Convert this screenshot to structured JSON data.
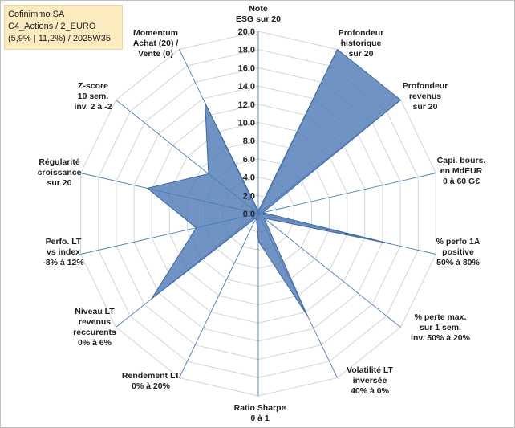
{
  "title": {
    "line1": "Cofinimmo SA",
    "line2": "C4_Actions / 2_EURO",
    "line3": "(5,9% | 11,2%) / 2025W35"
  },
  "chart_data": {
    "type": "radar",
    "rmin": 0,
    "rmax": 20,
    "tick_step": 2,
    "tick_labels": [
      "0,0",
      "2,0",
      "4,0",
      "6,0",
      "8,0",
      "10,0",
      "12,0",
      "14,0",
      "16,0",
      "18,0",
      "20,0"
    ],
    "grid": true,
    "categories": [
      [
        "Note",
        "ESG sur 20"
      ],
      [
        "Profondeur",
        "historique",
        "sur 20"
      ],
      [
        "Profondeur",
        "revenus",
        "sur 20"
      ],
      [
        "Capi. bours.",
        "en MdEUR",
        "0 à 60 G€"
      ],
      [
        "% perfo 1A",
        "positive",
        "50% à 80%"
      ],
      [
        "% perte max.",
        "sur 1 sem.",
        "inv. 50% à 20%"
      ],
      [
        "Volatilité LT",
        "inversée",
        "40% à 0%"
      ],
      [
        "Ratio Sharpe",
        "0 à 1"
      ],
      [
        "Rendement LT",
        "0% à 20%"
      ],
      [
        "Niveau LT",
        "revenus",
        "reccurents",
        "0% à 6%"
      ],
      [
        "Perfo. LT",
        "vs index",
        "-8% à 12%"
      ],
      [
        "Régularité",
        "croissance",
        "sur 20"
      ],
      [
        "Z-score",
        "10 sem.",
        "inv. 2 à -2"
      ],
      [
        "Momentum",
        "Achat (20) /",
        "Vente (0)"
      ]
    ],
    "series": [
      {
        "values": [
          0.3,
          20.0,
          20.0,
          0.5,
          15.0,
          0.8,
          12.5,
          3.0,
          0.5,
          15.0,
          7.0,
          12.5,
          7.0,
          13.5
        ],
        "color": "#4f7bb5"
      }
    ]
  }
}
